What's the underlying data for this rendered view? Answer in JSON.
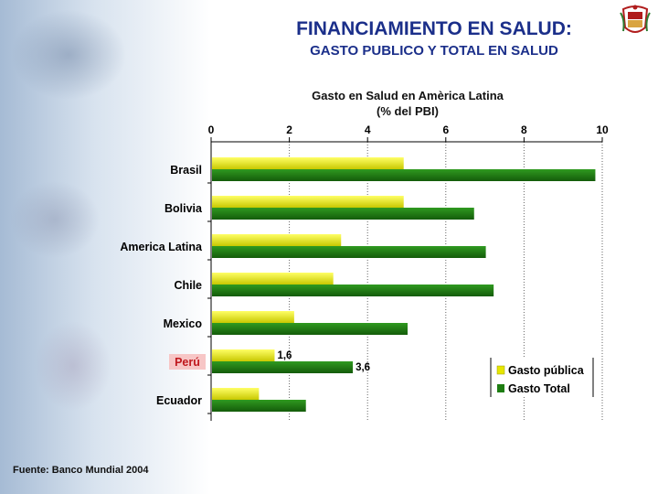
{
  "header": {
    "title": "FINANCIAMIENTO EN SALUD:",
    "subtitle": "GASTO PUBLICO Y TOTAL EN SALUD"
  },
  "footer": {
    "source": "Fuente: Banco Mundial 2004"
  },
  "colors": {
    "title": "#1b2f8a",
    "gasto_publico": "#e6e600",
    "gasto_total": "#1e7d12",
    "highlight_bg": "#f7c6c6",
    "highlight_text": "#c0181e"
  },
  "chart_data": {
    "type": "bar",
    "orientation": "horizontal",
    "title_line1": "Gasto en Salud en Amèrica Latina",
    "title_line2": "(% del PBI)",
    "categories": [
      "Brasil",
      "Bolivia",
      "America Latina",
      "Chile",
      "Mexico",
      "Perú",
      "Ecuador"
    ],
    "highlight_category": "Perú",
    "series": [
      {
        "name": "Gasto pública",
        "values": [
          4.9,
          4.9,
          3.3,
          3.1,
          2.1,
          1.6,
          1.2
        ]
      },
      {
        "name": "Gasto Total",
        "values": [
          9.8,
          6.7,
          7.0,
          7.2,
          5.0,
          3.6,
          2.4
        ]
      }
    ],
    "xlim": [
      0,
      10
    ],
    "xticks": [
      "0",
      "2",
      "4",
      "6",
      "8",
      "10"
    ],
    "xtick_values": [
      0,
      2,
      4,
      6,
      8,
      10
    ],
    "data_labels": [
      {
        "category": "Perú",
        "series": "Gasto pública",
        "text": "1,6"
      },
      {
        "category": "Perú",
        "series": "Gasto Total",
        "text": "3,6"
      }
    ],
    "legend": {
      "position": "bottom-right",
      "entries": [
        "Gasto pública",
        "Gasto Total"
      ]
    },
    "grid": true
  }
}
